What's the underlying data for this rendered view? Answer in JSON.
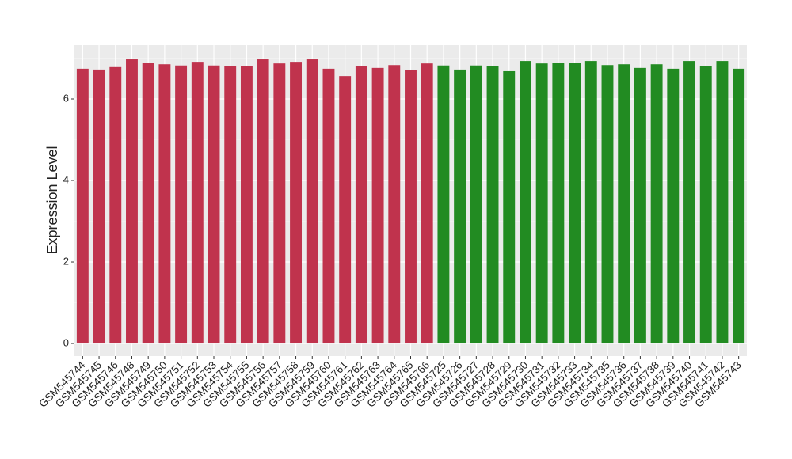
{
  "chart_data": {
    "type": "bar",
    "y_label": "Expression Level",
    "categories": [
      "GSM545744",
      "GSM545745",
      "GSM545746",
      "GSM545748",
      "GSM545749",
      "GSM545750",
      "GSM545751",
      "GSM545752",
      "GSM545753",
      "GSM545754",
      "GSM545755",
      "GSM545756",
      "GSM545757",
      "GSM545758",
      "GSM545759",
      "GSM545760",
      "GSM545761",
      "GSM545762",
      "GSM545763",
      "GSM545764",
      "GSM545765",
      "GSM545766",
      "GSM545725",
      "GSM545726",
      "GSM545727",
      "GSM545728",
      "GSM545729",
      "GSM545730",
      "GSM545731",
      "GSM545732",
      "GSM545733",
      "GSM545734",
      "GSM545735",
      "GSM545736",
      "GSM545737",
      "GSM545738",
      "GSM545739",
      "GSM545740",
      "GSM545741",
      "GSM545742",
      "GSM545743"
    ],
    "values": [
      6.74,
      6.72,
      6.78,
      6.97,
      6.89,
      6.85,
      6.82,
      6.91,
      6.82,
      6.8,
      6.8,
      6.97,
      6.87,
      6.91,
      6.97,
      6.74,
      6.56,
      6.8,
      6.76,
      6.83,
      6.7,
      6.87,
      6.82,
      6.72,
      6.82,
      6.8,
      6.68,
      6.93,
      6.87,
      6.89,
      6.89,
      6.93,
      6.83,
      6.85,
      6.76,
      6.85,
      6.74,
      6.93,
      6.8,
      6.93,
      6.74
    ],
    "colors": [
      "#c0334d",
      "#c0334d",
      "#c0334d",
      "#c0334d",
      "#c0334d",
      "#c0334d",
      "#c0334d",
      "#c0334d",
      "#c0334d",
      "#c0334d",
      "#c0334d",
      "#c0334d",
      "#c0334d",
      "#c0334d",
      "#c0334d",
      "#c0334d",
      "#c0334d",
      "#c0334d",
      "#c0334d",
      "#c0334d",
      "#c0334d",
      "#c0334d",
      "#228b22",
      "#228b22",
      "#228b22",
      "#228b22",
      "#228b22",
      "#228b22",
      "#228b22",
      "#228b22",
      "#228b22",
      "#228b22",
      "#228b22",
      "#228b22",
      "#228b22",
      "#228b22",
      "#228b22",
      "#228b22",
      "#228b22",
      "#228b22",
      "#228b22"
    ],
    "ylim": [
      -0.31,
      7.32
    ],
    "yticks": [
      0,
      2,
      4,
      6
    ],
    "grid": true
  }
}
